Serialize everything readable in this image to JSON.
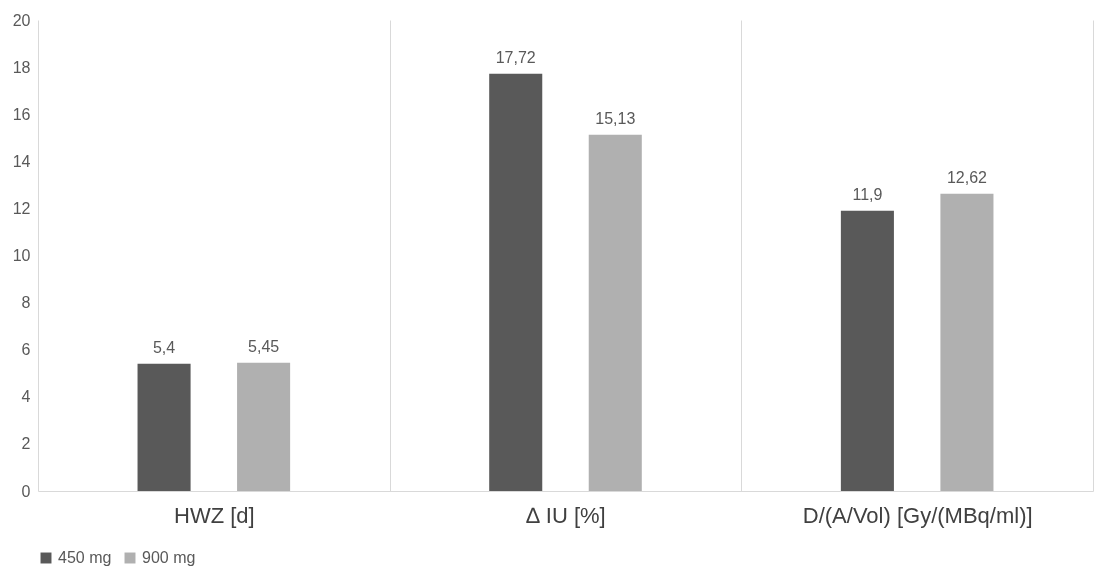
{
  "chart_data": {
    "type": "bar",
    "categories": [
      "HWZ [d]",
      "∆ IU [%]",
      "D/(A/Vol) [Gy/(MBq/ml)]"
    ],
    "series": [
      {
        "name": "450 mg",
        "color": "#595959",
        "values": [
          5.4,
          17.72,
          11.9
        ],
        "value_labels": [
          "5,4",
          "17,72",
          "11,9"
        ]
      },
      {
        "name": "900 mg",
        "color": "#b0b0b0",
        "values": [
          5.45,
          15.13,
          12.62
        ],
        "value_labels": [
          "5,45",
          "15,13",
          "12,62"
        ]
      }
    ],
    "ylim": [
      0,
      20
    ],
    "yticks": [
      0,
      2,
      4,
      6,
      8,
      10,
      12,
      14,
      16,
      18,
      20
    ],
    "grid": "x",
    "legend": "bottom"
  }
}
